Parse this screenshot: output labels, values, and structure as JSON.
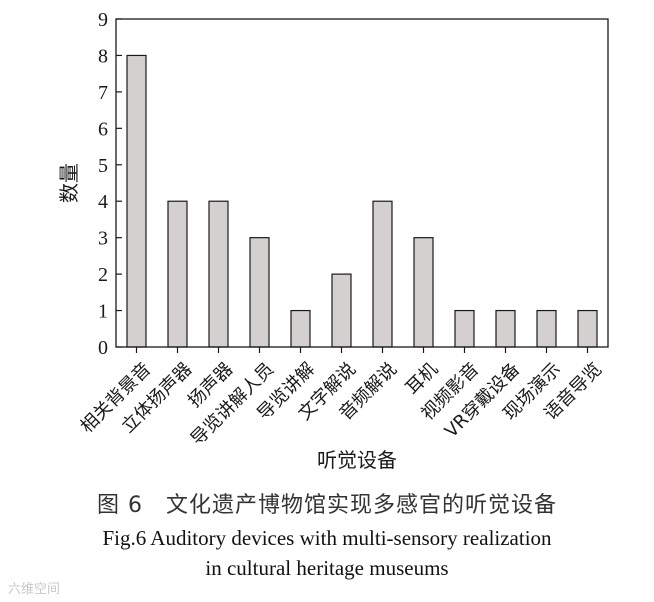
{
  "chart_data": {
    "type": "bar",
    "categories": [
      "相关背景音",
      "立体扬声器",
      "扬声器",
      "导览讲解人员",
      "导览讲解",
      "文字解说",
      "音频解说",
      "耳机",
      "视频影音",
      "VR穿戴设备",
      "现场演示",
      "语音导览"
    ],
    "values": [
      8,
      4,
      4,
      3,
      1,
      2,
      4,
      3,
      1,
      1,
      1,
      1
    ],
    "xlabel": "听觉设备",
    "ylabel": "数量",
    "ylim": [
      0,
      9
    ],
    "yticks": [
      0,
      1,
      2,
      3,
      4,
      5,
      6,
      7,
      8,
      9
    ],
    "grid": false,
    "bar_color": "#d4d0d0"
  },
  "caption": {
    "cn": "图 6　文化遗产博物馆实现多感官的听觉设备",
    "en_line1": "Fig.6 Auditory devices with multi-sensory realization",
    "en_line2": "in cultural heritage museums"
  },
  "watermark": "六维空间"
}
